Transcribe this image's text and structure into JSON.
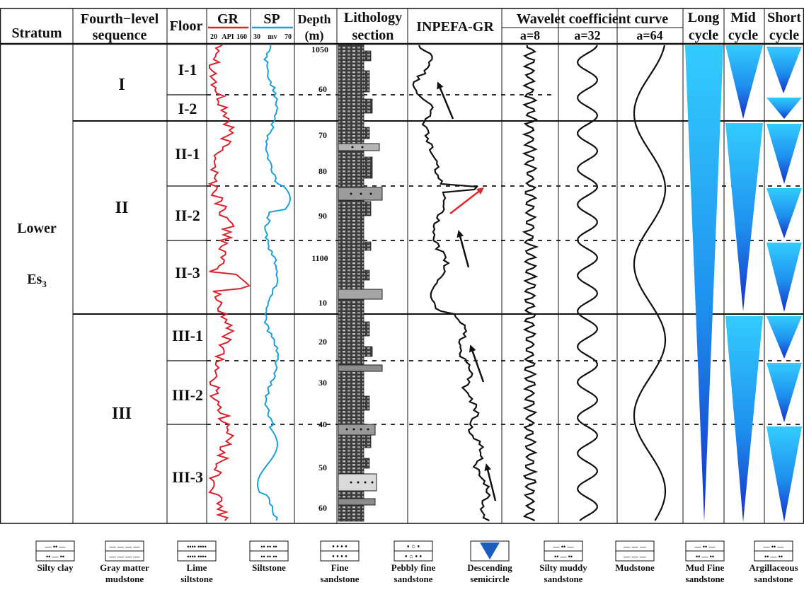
{
  "headers": {
    "stratum": "Stratum",
    "fourth_level": [
      "Fourth−level",
      "sequence"
    ],
    "floor": "Floor",
    "gr": "GR",
    "gr_scale": [
      "20",
      "API",
      "160"
    ],
    "sp": "SP",
    "sp_scale": [
      "30",
      "mv",
      "70"
    ],
    "depth": [
      "Depth",
      "(m)"
    ],
    "lithology": [
      "Lithology",
      "section"
    ],
    "inpefa": "INPEFA-GR",
    "wavelet": "Wavelet coefficient curve",
    "wavelet_scales": [
      "a=8",
      "a=32",
      "a=64"
    ],
    "long": [
      "Long",
      "cycle"
    ],
    "mid": [
      "Mid",
      "cycle"
    ],
    "short": [
      "Short",
      "cycle"
    ]
  },
  "stratum": [
    "Lower",
    "Es",
    "3"
  ],
  "sequences": [
    "I",
    "II",
    "III"
  ],
  "floors": [
    "I-1",
    "I-2",
    "II-1",
    "II-2",
    "II-3",
    "III-1",
    "III-2",
    "III-3"
  ],
  "depth_labels": [
    "1050",
    "60",
    "70",
    "80",
    "90",
    "1100",
    "10",
    "20",
    "30",
    "40",
    "50",
    "60"
  ],
  "colors": {
    "gr_curve": "#d9232d",
    "sp_curve": "#1aa0dc",
    "red_arrow": "#e0262e",
    "cycle_light": "#33ccff",
    "cycle_dark": "#1530c8"
  },
  "legend": [
    {
      "icon": "silty-clay-pattern-icon",
      "label": [
        "Silty clay"
      ]
    },
    {
      "icon": "gray-matter-mudstone-pattern-icon",
      "label": [
        "Gray matter",
        "mudstone"
      ]
    },
    {
      "icon": "lime-siltstone-pattern-icon",
      "label": [
        "Lime",
        "siltstone"
      ]
    },
    {
      "icon": "siltstone-pattern-icon",
      "label": [
        "Siltstone"
      ]
    },
    {
      "icon": "fine-sandstone-pattern-icon",
      "label": [
        "Fine",
        "sandstone"
      ]
    },
    {
      "icon": "pebbly-fine-sandstone-pattern-icon",
      "label": [
        "Pebbly fine",
        "sandstone"
      ]
    },
    {
      "icon": "descending-semicircle-icon",
      "label": [
        "Descending",
        "semicircle"
      ]
    },
    {
      "icon": "silty-muddy-sandstone-pattern-icon",
      "label": [
        "Silty muddy",
        "sandstone"
      ]
    },
    {
      "icon": "mudstone-pattern-icon",
      "label": [
        "Mudstone"
      ]
    },
    {
      "icon": "mud-fine-sandstone-pattern-icon",
      "label": [
        "Mud Fine",
        "sandstone"
      ]
    },
    {
      "icon": "argillaceous-sandstone-pattern-icon",
      "label": [
        "Argillaceous",
        "sandstone"
      ]
    }
  ]
}
